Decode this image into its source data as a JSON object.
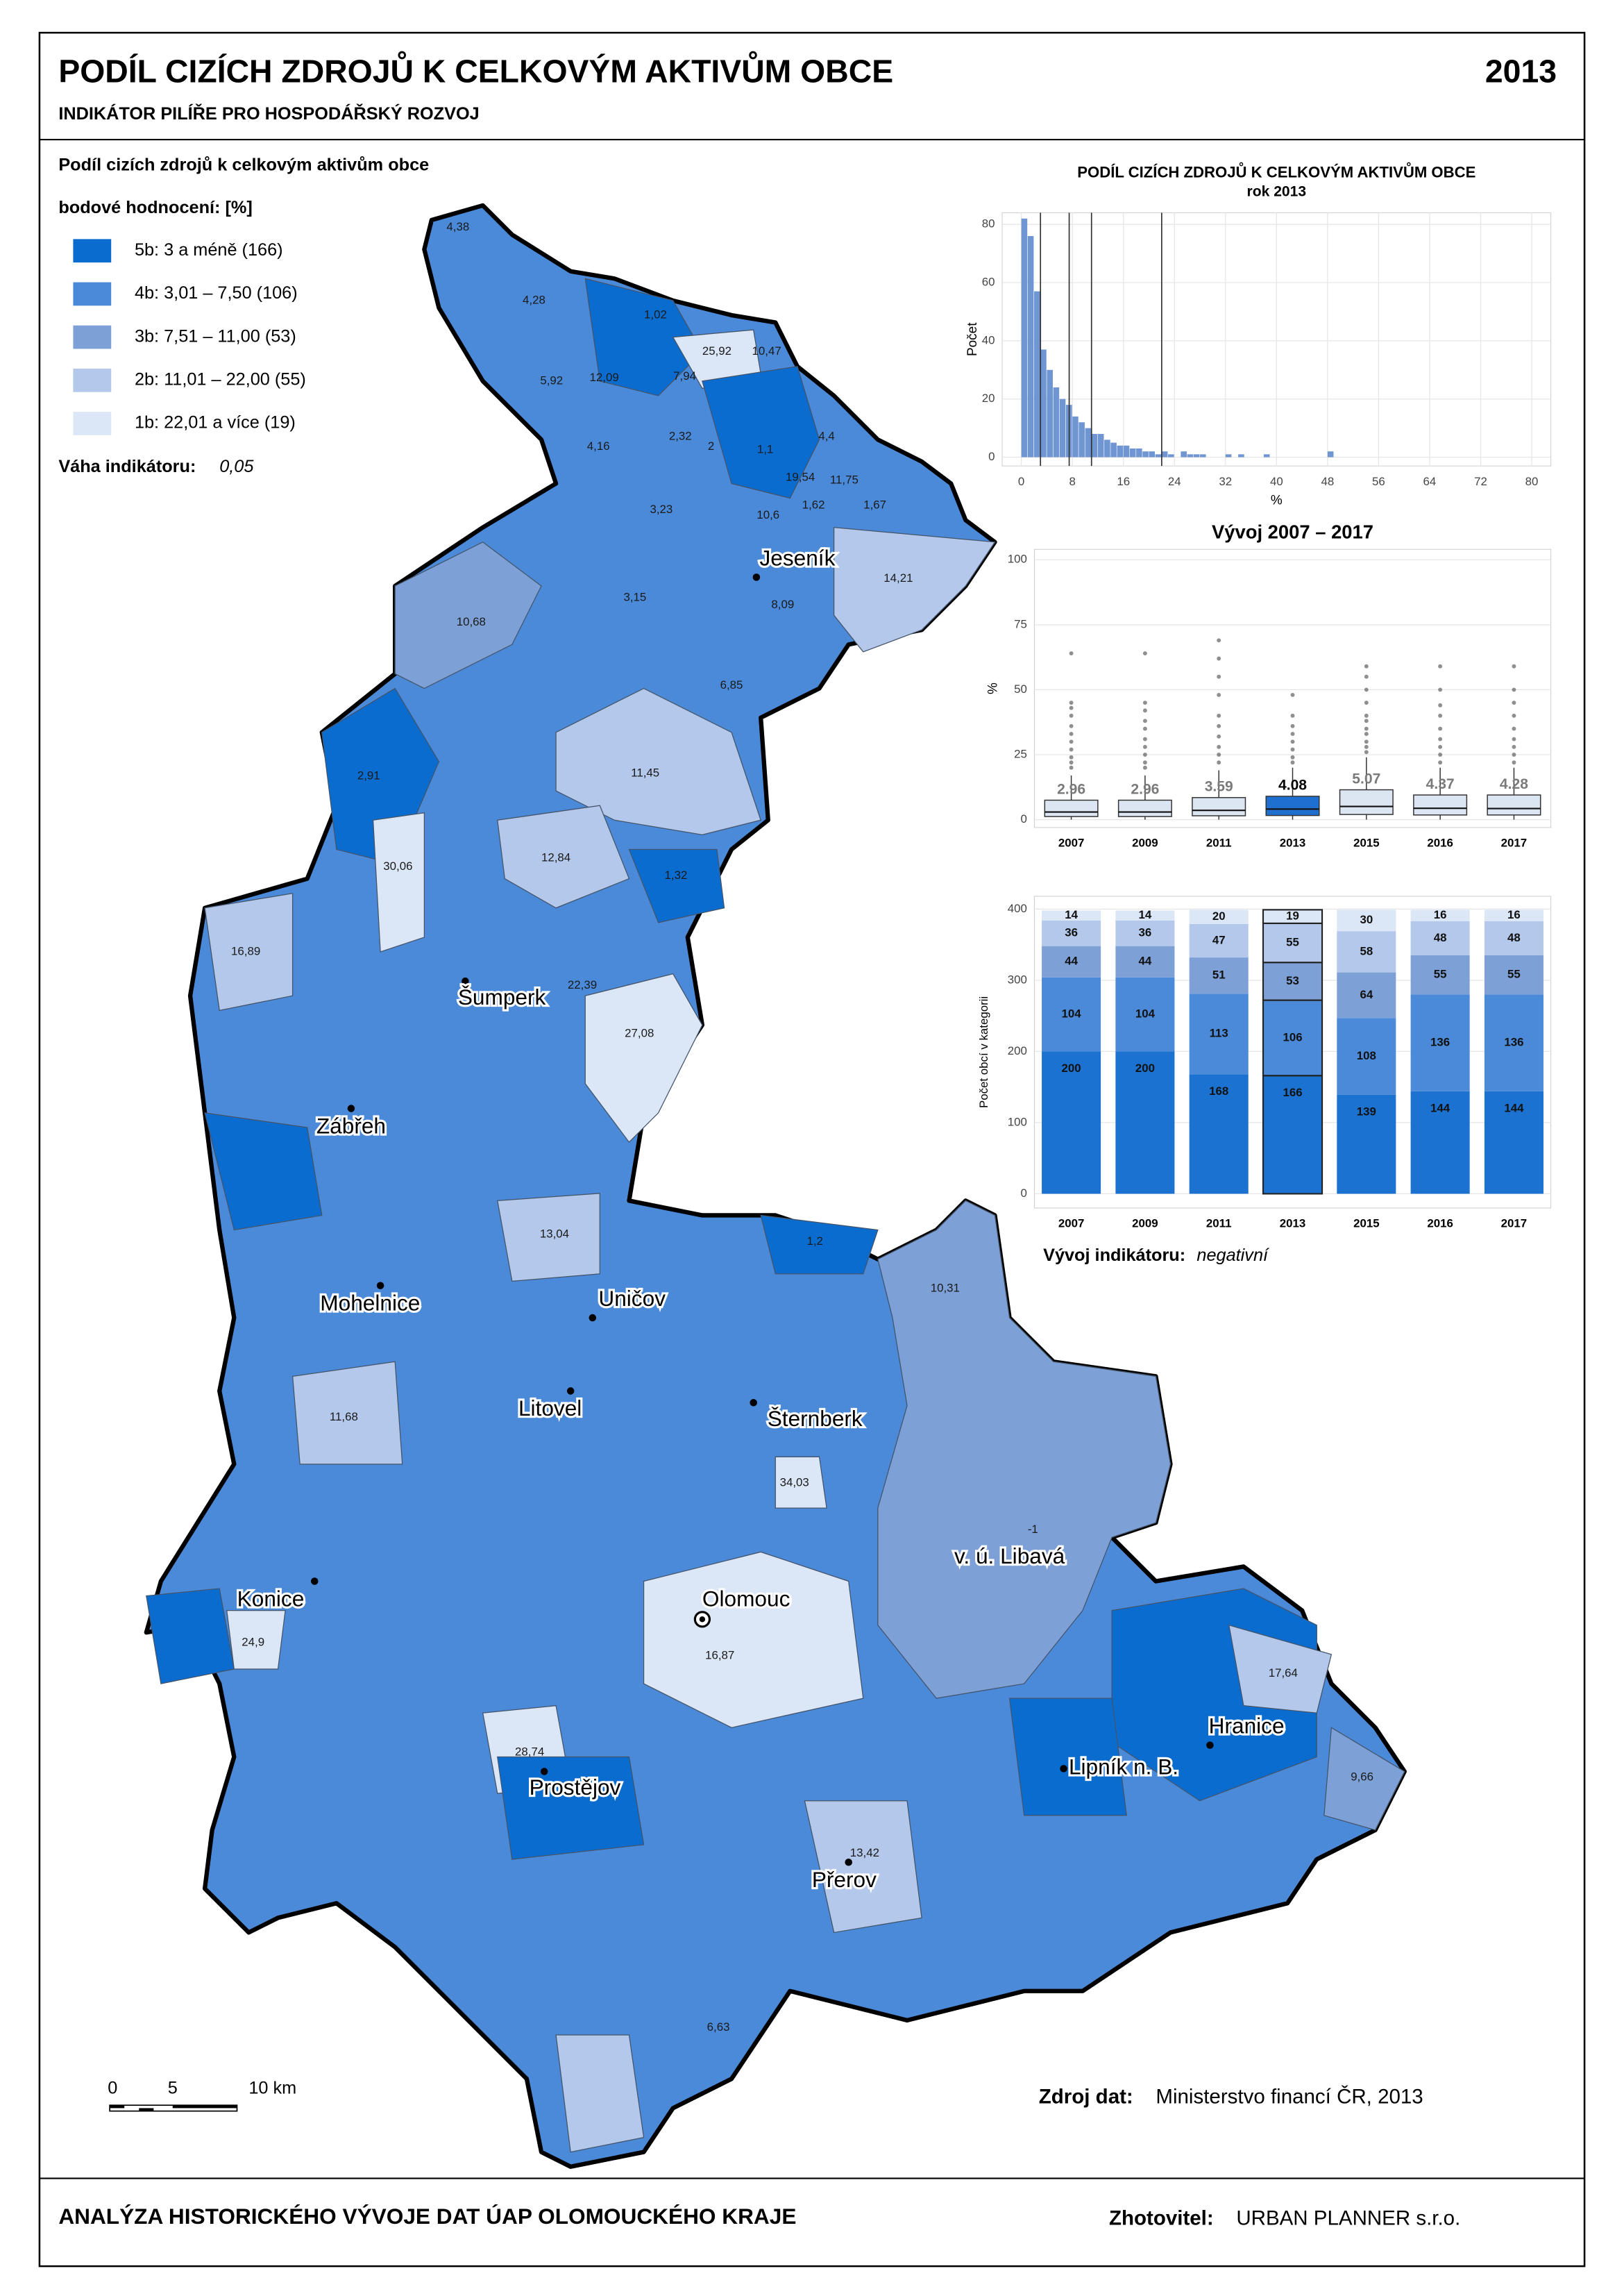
{
  "header": {
    "title": "PODÍL CIZÍCH ZDROJŮ K CELKOVÝM AKTIVŮM OBCE",
    "subtitle": "INDIKÁTOR PILÍŘE PRO HOSPODÁŘSKÝ ROZVOJ",
    "year": "2013"
  },
  "legend": {
    "title": "Podíl cizích zdrojů k celkovým aktivům obce",
    "subtitle": "bodové hodnocení: [%]",
    "items": [
      {
        "label": "5b: 3 a méně (166)",
        "color": "#0b6ccf"
      },
      {
        "label": "4b: 3,01 – 7,50 (106)",
        "color": "#4a8ad8"
      },
      {
        "label": "3b: 7,51 – 11,00 (53)",
        "color": "#7da0d6"
      },
      {
        "label": "2b: 11,01 – 22,00 (55)",
        "color": "#b3c8ea"
      },
      {
        "label": "1b: 22,01 a více (19)",
        "color": "#dbe6f6"
      }
    ],
    "weight_label": "Váha indikátoru:",
    "weight_value": "0,05"
  },
  "map": {
    "cities": [
      "Jeseník",
      "Šumperk",
      "Zábřeh",
      "Mohelnice",
      "Uničov",
      "Litovel",
      "Šternberk",
      "v. ú. Libavá",
      "Konice",
      "Olomouc",
      "Hranice",
      "Lipník n. B.",
      "Prostějov",
      "Přerov"
    ],
    "labels": [
      "4,38",
      "4,28",
      "1,02",
      "25,92",
      "10,47",
      "12,09",
      "5,92",
      "7,94",
      "4,16",
      "2,32",
      "2",
      "1,1",
      "4,4",
      "19,54",
      "11,75",
      "1,62",
      "1,67",
      "3,23",
      "10,6",
      "14,21",
      "3,15",
      "8,09",
      "10,68",
      "6,85",
      "11,45",
      "2,91",
      "30,06",
      "12,84",
      "1,32",
      "16,89",
      "27,08",
      "22,39",
      "13,04",
      "1,2",
      "10,31",
      "11,68",
      "34,03",
      "16,87",
      "17,64",
      "9,66",
      "24,9",
      "28,74",
      "13,42",
      "6,63",
      "-1"
    ]
  },
  "scale_bar": {
    "ticks": [
      "0",
      "5",
      "10 km"
    ]
  },
  "chart_data": [
    {
      "type": "histogram",
      "title": "PODÍL CIZÍCH ZDROJŮ K CELKOVÝM AKTIVŮM OBCE",
      "subtitle": "rok 2013",
      "xlabel": "%",
      "ylabel": "Počet",
      "bins": [
        0,
        1,
        2,
        3,
        4,
        5,
        6,
        7,
        8,
        9,
        10,
        11,
        12,
        13,
        14,
        15,
        16,
        17,
        18,
        19,
        20,
        21,
        22,
        23,
        24,
        25,
        26,
        27,
        28,
        29,
        30,
        31,
        32,
        33,
        34,
        35,
        36,
        37,
        38,
        39,
        40,
        41,
        42,
        43,
        44,
        45,
        46,
        47,
        48,
        49,
        50
      ],
      "counts": [
        82,
        76,
        57,
        37,
        30,
        24,
        20,
        18,
        14,
        12,
        10,
        8,
        8,
        6,
        5,
        4,
        4,
        3,
        3,
        2,
        2,
        1,
        2,
        1,
        0,
        2,
        1,
        1,
        1,
        0,
        0,
        0,
        1,
        0,
        1,
        0,
        0,
        0,
        1,
        0,
        0,
        0,
        0,
        0,
        0,
        0,
        0,
        0,
        2,
        0
      ],
      "color": "#6f95d3",
      "vlines": [
        3,
        7.5,
        11,
        22
      ],
      "xlim": [
        -3,
        83
      ],
      "ylim": [
        -3,
        84
      ],
      "xticks": [
        0,
        8,
        16,
        24,
        32,
        40,
        48,
        56,
        64,
        72,
        80
      ],
      "yticks": [
        0,
        20,
        40,
        60,
        80
      ],
      "grid": true
    },
    {
      "type": "box",
      "title": "Vývoj 2007 – 2017",
      "ylabel": "%",
      "categories": [
        "2007",
        "2009",
        "2011",
        "2013",
        "2015",
        "2016",
        "2017"
      ],
      "medians": [
        2.96,
        2.96,
        3.59,
        4.08,
        5.07,
        4.37,
        4.28
      ],
      "q1": [
        1.2,
        1.2,
        1.5,
        1.6,
        2.0,
        1.8,
        1.8
      ],
      "q3": [
        7.5,
        7.5,
        8.5,
        9.0,
        11.5,
        9.5,
        9.5
      ],
      "low": [
        0,
        0,
        0,
        0,
        0,
        0,
        0
      ],
      "high": [
        17,
        17,
        19,
        20,
        24,
        20,
        20
      ],
      "outliers": [
        [
          20,
          22,
          24,
          27,
          30,
          33,
          36,
          40,
          43,
          45,
          64
        ],
        [
          20,
          22,
          25,
          28,
          31,
          35,
          38,
          42,
          45,
          64
        ],
        [
          22,
          25,
          28,
          32,
          36,
          40,
          48,
          55,
          62,
          69
        ],
        [
          22,
          24,
          27,
          30,
          33,
          36,
          40,
          48
        ],
        [
          26,
          28,
          30,
          33,
          35,
          38,
          40,
          45,
          50,
          55,
          59
        ],
        [
          22,
          25,
          28,
          31,
          35,
          40,
          44,
          50,
          59
        ],
        [
          22,
          25,
          28,
          31,
          35,
          40,
          45,
          50,
          59
        ]
      ],
      "color": "#dce6f3",
      "highlight": "2013",
      "highlight_color": "#1f6fd0",
      "ylim": [
        -3,
        104
      ],
      "yticks": [
        0,
        25,
        50,
        75,
        100
      ],
      "grid": true
    },
    {
      "type": "stacked_bar",
      "ylabel": "Počet obcí v kategorii",
      "categories": [
        "2007",
        "2009",
        "2011",
        "2013",
        "2015",
        "2016",
        "2017"
      ],
      "series": [
        {
          "color": "#1c72d1",
          "values": [
            200,
            200,
            168,
            166,
            139,
            144,
            144
          ]
        },
        {
          "color": "#4a8ad8",
          "values": [
            104,
            104,
            113,
            106,
            108,
            136,
            136
          ]
        },
        {
          "color": "#7da0d6",
          "values": [
            44,
            44,
            51,
            53,
            64,
            55,
            55
          ]
        },
        {
          "color": "#b3c8ea",
          "values": [
            36,
            36,
            47,
            55,
            58,
            48,
            48
          ]
        },
        {
          "color": "#dbe6f6",
          "values": [
            14,
            14,
            20,
            19,
            30,
            16,
            16
          ]
        }
      ],
      "highlight": "2013",
      "ylim": [
        -20,
        418
      ],
      "yticks": [
        0,
        100,
        200,
        300,
        400
      ],
      "grid": true
    }
  ],
  "trend": {
    "label": "Vývoj indikátoru:",
    "value": "negativní"
  },
  "source": {
    "label": "Zdroj dat:",
    "value": "Ministerstvo financí ČR, 2013"
  },
  "footer": {
    "title": "ANALÝZA HISTORICKÉHO VÝVOJE DAT ÚAP OLOMOUCKÉHO KRAJE",
    "author_label": "Zhotovitel:",
    "author": "URBAN PLANNER s.r.o."
  }
}
